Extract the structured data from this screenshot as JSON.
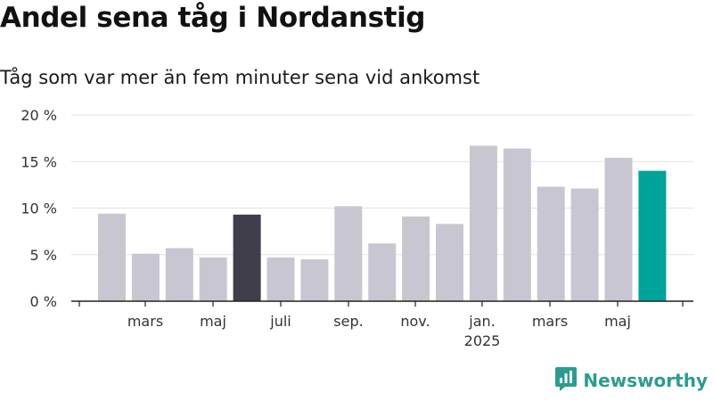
{
  "chart_data": {
    "type": "bar",
    "title": "Andel sena tåg i Nordanstig",
    "subtitle": "Tåg som var mer än fem minuter sena vid ankomst",
    "values": [
      9.4,
      5.1,
      5.7,
      4.7,
      9.3,
      4.7,
      4.5,
      10.2,
      6.2,
      9.1,
      8.3,
      16.7,
      16.4,
      12.3,
      12.1,
      15.4,
      14.0
    ],
    "x_tick_labels": [
      "mars",
      "maj",
      "juli",
      "sep.",
      "nov.",
      "jan.",
      "mars",
      "maj"
    ],
    "x_year_label": "2025",
    "y_tick_labels": [
      "0 %",
      "5 %",
      "10 %",
      "15 %",
      "20 %"
    ],
    "ylim": [
      0,
      20
    ],
    "grid": true,
    "colors": {
      "default": "#c8c7d1",
      "highlight_dark": "#3f3e4a",
      "highlight_latest": "#00a39a"
    },
    "bar_colors": [
      "default",
      "default",
      "default",
      "default",
      "highlight_dark",
      "default",
      "default",
      "default",
      "default",
      "default",
      "default",
      "default",
      "default",
      "default",
      "default",
      "default",
      "highlight_latest"
    ]
  },
  "brand": {
    "name": "Newsworthy",
    "color": "#2a9d8f",
    "icon": "newsworthy-logo-icon"
  }
}
